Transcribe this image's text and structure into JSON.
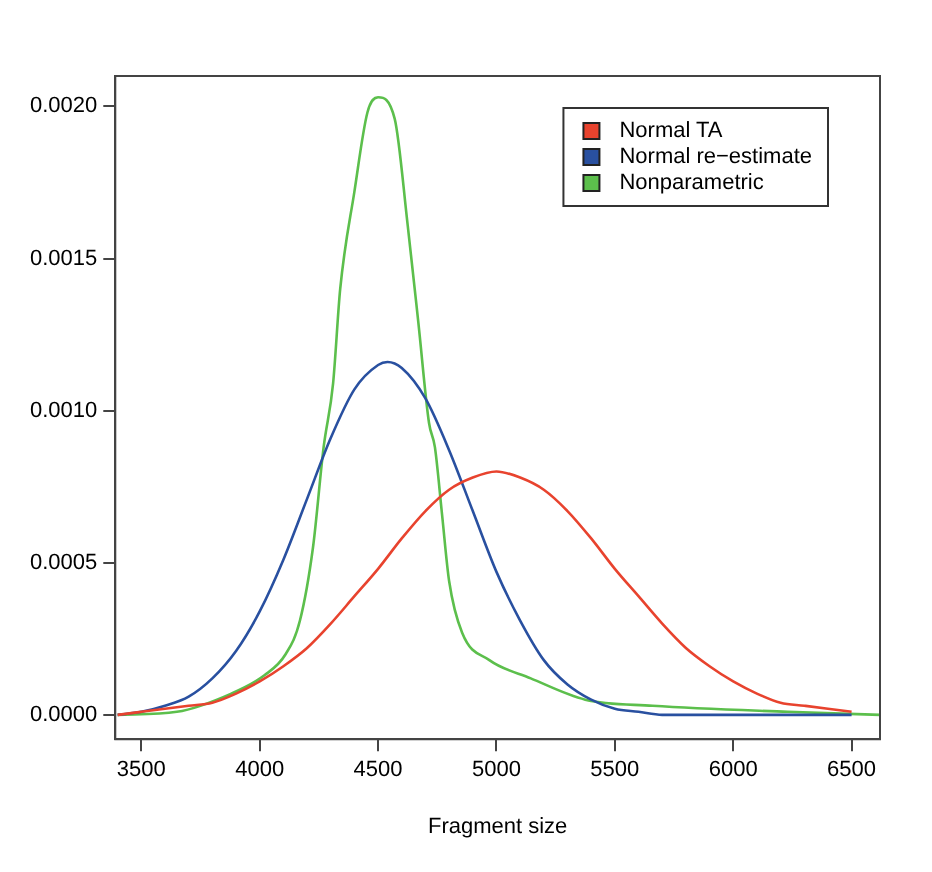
{
  "chart_data": {
    "type": "line",
    "xlabel": "Fragment size",
    "xlim": [
      3390,
      6620
    ],
    "xticks": [
      3500,
      4000,
      4500,
      5000,
      5500,
      6000,
      6500
    ],
    "ylim": [
      -8e-05,
      0.0021
    ],
    "yticks": [
      {
        "value": 0,
        "label": "0.0000"
      },
      {
        "value": 0.0005,
        "label": "0.0005"
      },
      {
        "value": 0.001,
        "label": "0.0010"
      },
      {
        "value": 0.0015,
        "label": "0.0015"
      },
      {
        "value": 0.002,
        "label": "0.0020"
      }
    ],
    "grid": false,
    "legend": "top right",
    "marker": "none",
    "line_style": "solid",
    "series": [
      {
        "name": "Normal TA",
        "color": "#e8432e",
        "x": [
          3400,
          3500,
          3600,
          3700,
          3800,
          3900,
          4000,
          4100,
          4200,
          4300,
          4400,
          4500,
          4600,
          4700,
          4800,
          4900,
          5000,
          5100,
          5200,
          5300,
          5400,
          5500,
          5600,
          5700,
          5800,
          5900,
          6000,
          6100,
          6200,
          6300,
          6400,
          6500
        ],
        "values": [
          0,
          1e-05,
          2e-05,
          3e-05,
          4e-05,
          7e-05,
          0.00011,
          0.00016,
          0.00022,
          0.0003,
          0.00039,
          0.00048,
          0.00058,
          0.00067,
          0.00074,
          0.00078,
          0.0008,
          0.00078,
          0.00074,
          0.00067,
          0.00058,
          0.00048,
          0.00039,
          0.0003,
          0.00022,
          0.00016,
          0.00011,
          7e-05,
          4e-05,
          3e-05,
          2e-05,
          1e-05
        ]
      },
      {
        "name": "Normal re−estimate",
        "color": "#2950a0",
        "x": [
          3400,
          3500,
          3600,
          3700,
          3800,
          3900,
          4000,
          4100,
          4200,
          4300,
          4400,
          4500,
          4540,
          4600,
          4700,
          4800,
          4900,
          5000,
          5100,
          5200,
          5300,
          5400,
          5500,
          5600,
          5700,
          5800,
          6000,
          6200,
          6500
        ],
        "values": [
          0,
          1e-05,
          3e-05,
          6e-05,
          0.00012,
          0.00021,
          0.00034,
          0.00051,
          0.00071,
          0.00091,
          0.00107,
          0.00115,
          0.00116,
          0.00114,
          0.00104,
          0.00087,
          0.00067,
          0.00047,
          0.00031,
          0.00018,
          0.0001,
          5e-05,
          2e-05,
          1e-05,
          0,
          0,
          0,
          0,
          0
        ]
      },
      {
        "name": "Nonparametric",
        "color": "#5cbf4c",
        "x": [
          3400,
          3650,
          3880,
          4020,
          4110,
          4170,
          4225,
          4270,
          4310,
          4340,
          4400,
          4455,
          4500,
          4570,
          4625,
          4670,
          4715,
          4740,
          4770,
          4800,
          4855,
          4970,
          5145,
          5375,
          5660,
          6230,
          6620
        ],
        "values": [
          0,
          1e-05,
          7e-05,
          0.00013,
          0.0002,
          0.00031,
          0.00055,
          0.00088,
          0.00109,
          0.0014,
          0.00172,
          0.00198,
          0.00203,
          0.00196,
          0.00161,
          0.00129,
          0.00096,
          0.00088,
          0.00066,
          0.00044,
          0.00027,
          0.00018,
          0.00012,
          5e-05,
          3e-05,
          1e-05,
          0
        ]
      }
    ]
  }
}
